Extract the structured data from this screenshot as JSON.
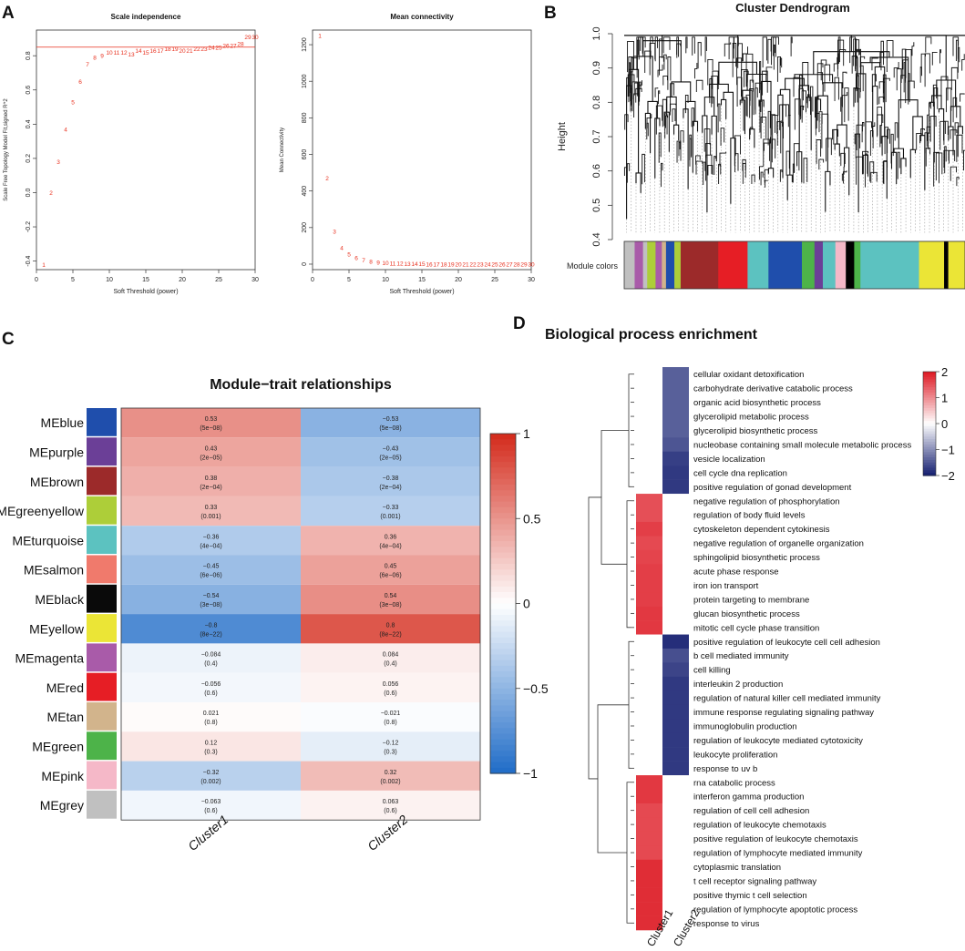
{
  "panel_letters": [
    "A",
    "B",
    "C",
    "D"
  ],
  "chart_data": [
    {
      "id": "A1",
      "type": "scatter",
      "title": "Scale independence",
      "xlabel": "Soft Threshold (power)",
      "ylabel": "Scale Free Topology Model Fit,signed R^2",
      "xlim": [
        0,
        30
      ],
      "ylim": [
        -0.45,
        0.95
      ],
      "xticks": [
        "0",
        "5",
        "10",
        "15",
        "20",
        "25",
        "30"
      ],
      "yticks": [
        "-0.4",
        "-0.2",
        "0.0",
        "0.2",
        "0.4",
        "0.6",
        "0.8"
      ],
      "hline": 0.85,
      "line_color": "#e8311f",
      "x": [
        1,
        2,
        3,
        4,
        5,
        6,
        7,
        8,
        9,
        10,
        11,
        12,
        13,
        14,
        15,
        16,
        17,
        18,
        19,
        20,
        21,
        22,
        23,
        24,
        25,
        26,
        27,
        28,
        29,
        30
      ],
      "values": [
        -0.42,
        0.0,
        0.18,
        0.37,
        0.53,
        0.65,
        0.75,
        0.79,
        0.8,
        0.82,
        0.82,
        0.82,
        0.81,
        0.83,
        0.82,
        0.83,
        0.83,
        0.84,
        0.84,
        0.83,
        0.83,
        0.84,
        0.84,
        0.85,
        0.85,
        0.86,
        0.86,
        0.87,
        0.91,
        0.91
      ]
    },
    {
      "id": "A2",
      "type": "scatter",
      "title": "Mean connectivity",
      "xlabel": "Soft Threshold (power)",
      "ylabel": "Mean Connectivity",
      "xlim": [
        0,
        30
      ],
      "ylim": [
        -30,
        1280
      ],
      "xticks": [
        "0",
        "5",
        "10",
        "15",
        "20",
        "25",
        "30"
      ],
      "yticks": [
        "0",
        "200",
        "400",
        "600",
        "800",
        "1000",
        "1200"
      ],
      "x": [
        1,
        2,
        3,
        4,
        5,
        6,
        7,
        8,
        9,
        10,
        11,
        12,
        13,
        14,
        15,
        16,
        17,
        18,
        19,
        20,
        21,
        22,
        23,
        24,
        25,
        26,
        27,
        28,
        29,
        30
      ],
      "values": [
        1250,
        470,
        180,
        90,
        55,
        35,
        22,
        15,
        10,
        7,
        5,
        4,
        3,
        2,
        2,
        1,
        1,
        1,
        1,
        0,
        0,
        0,
        0,
        0,
        0,
        0,
        0,
        0,
        0,
        0
      ]
    },
    {
      "id": "B",
      "type": "dendrogram",
      "title": "Cluster Dendrogram",
      "ylabel": "Height",
      "yticks": [
        "0.4",
        "0.5",
        "0.6",
        "0.7",
        "0.8",
        "0.9",
        "1.0"
      ],
      "ylim": [
        0.4,
        1.0
      ],
      "colorbar_label": "Module colors",
      "module_color_blocks": [
        {
          "color": "#c0c0c0",
          "w": 2.5
        },
        {
          "color": "#a95ba9",
          "w": 2
        },
        {
          "color": "#c0c0c0",
          "w": 1
        },
        {
          "color": "#adce39",
          "w": 2
        },
        {
          "color": "#a95ba9",
          "w": 1.5
        },
        {
          "color": "#d2b48c",
          "w": 1
        },
        {
          "color": "#1f4eac",
          "w": 2
        },
        {
          "color": "#adce39",
          "w": 1.5
        },
        {
          "color": "#9c2a2a",
          "w": 9
        },
        {
          "color": "#e61e25",
          "w": 7
        },
        {
          "color": "#5cc2c0",
          "w": 5
        },
        {
          "color": "#1f4eac",
          "w": 8
        },
        {
          "color": "#4db349",
          "w": 3
        },
        {
          "color": "#6b3f97",
          "w": 2
        },
        {
          "color": "#5cc2c0",
          "w": 3
        },
        {
          "color": "#f5b8c8",
          "w": 2.5
        },
        {
          "color": "#000000",
          "w": 2
        },
        {
          "color": "#4db349",
          "w": 1.5
        },
        {
          "color": "#5cc2c0",
          "w": 14
        },
        {
          "color": "#ebe536",
          "w": 6
        },
        {
          "color": "#000000",
          "w": 1
        },
        {
          "color": "#ebe536",
          "w": 4
        }
      ]
    },
    {
      "id": "C",
      "type": "heatmap",
      "title": "Module−trait relationships",
      "rows": [
        "MEblue",
        "MEpurple",
        "MEbrown",
        "MEgreenyellow",
        "MEturquoise",
        "MEsalmon",
        "MEblack",
        "MEyellow",
        "MEmagenta",
        "MEred",
        "MEtan",
        "MEgreen",
        "MEpink",
        "MEgrey"
      ],
      "row_colors": [
        "#1f4eac",
        "#6b3f97",
        "#9c2a2a",
        "#adce39",
        "#5cc2c0",
        "#f07a6c",
        "#0a0a0a",
        "#ebe536",
        "#a95ba9",
        "#e61e25",
        "#d2b48c",
        "#4db349",
        "#f5b8c8",
        "#c0c0c0"
      ],
      "columns": [
        "Cluster1",
        "Cluster2"
      ],
      "values": [
        [
          0.53,
          -0.53
        ],
        [
          0.43,
          -0.43
        ],
        [
          0.38,
          -0.38
        ],
        [
          0.33,
          -0.33
        ],
        [
          -0.36,
          0.36
        ],
        [
          -0.45,
          0.45
        ],
        [
          -0.54,
          0.54
        ],
        [
          -0.8,
          0.8
        ],
        [
          -0.084,
          0.084
        ],
        [
          -0.056,
          0.056
        ],
        [
          0.021,
          -0.021
        ],
        [
          0.12,
          -0.12
        ],
        [
          -0.32,
          0.32
        ],
        [
          -0.063,
          0.063
        ]
      ],
      "labels": [
        [
          "0.53",
          "−0.53"
        ],
        [
          "0.43",
          "−0.43"
        ],
        [
          "0.38",
          "−0.38"
        ],
        [
          "0.33",
          "−0.33"
        ],
        [
          "−0.36",
          "0.36"
        ],
        [
          "−0.45",
          "0.45"
        ],
        [
          "−0.54",
          "0.54"
        ],
        [
          "−0.8",
          "0.8"
        ],
        [
          "−0.084",
          "0.084"
        ],
        [
          "−0.056",
          "0.056"
        ],
        [
          "0.021",
          "−0.021"
        ],
        [
          "0.12",
          "−0.12"
        ],
        [
          "−0.32",
          "0.32"
        ],
        [
          "−0.063",
          "0.063"
        ]
      ],
      "pvalues": [
        [
          "(5e−08)",
          "(5e−08)"
        ],
        [
          "(2e−05)",
          "(2e−05)"
        ],
        [
          "(2e−04)",
          "(2e−04)"
        ],
        [
          "(0.001)",
          "(0.001)"
        ],
        [
          "(4e−04)",
          "(4e−04)"
        ],
        [
          "(6e−06)",
          "(6e−06)"
        ],
        [
          "(3e−08)",
          "(3e−08)"
        ],
        [
          "(8e−22)",
          "(8e−22)"
        ],
        [
          "(0.4)",
          "(0.4)"
        ],
        [
          "(0.6)",
          "(0.6)"
        ],
        [
          "(0.8)",
          "(0.8)"
        ],
        [
          "(0.3)",
          "(0.3)"
        ],
        [
          "(0.002)",
          "(0.002)"
        ],
        [
          "(0.6)",
          "(0.6)"
        ]
      ],
      "colorbar_ticks": [
        "1",
        "0.5",
        "0",
        "−0.5",
        "−1"
      ],
      "range": [
        -1,
        1
      ]
    },
    {
      "id": "D",
      "type": "heatmap",
      "title": "Biological process enrichment",
      "columns": [
        "Cluster1",
        "Cluster2"
      ],
      "terms": [
        "cellular oxidant detoxification",
        "carbohydrate derivative catabolic process",
        "organic acid biosynthetic process",
        "glycerolipid metabolic process",
        "glycerolipid biosynthetic process",
        "nucleobase containing small molecule metabolic process",
        "vesicle localization",
        "cell cycle dna replication",
        "positive regulation of gonad development",
        "negative regulation of phosphorylation",
        "regulation of body fluid levels",
        "cytoskeleton dependent cytokinesis",
        "negative regulation of organelle organization",
        "sphingolipid biosynthetic process",
        "acute phase response",
        "iron ion transport",
        "protein targeting to membrane",
        "glucan biosynthetic process",
        "mitotic cell cycle phase transition",
        "positive regulation of leukocyte cell cell adhesion",
        "b cell mediated immunity",
        "cell killing",
        "interleukin 2 production",
        "regulation of natural killer cell mediated immunity",
        "immune response regulating signaling pathway",
        "immunoglobulin production",
        "regulation of leukocyte mediated cytotoxicity",
        "leukocyte proliferation",
        "response to uv b",
        "rna catabolic process",
        "interferon gamma production",
        "regulation of cell cell adhesion",
        "regulation of leukocyte chemotaxis",
        "positive regulation of leukocyte chemotaxis",
        "regulation of lymphocyte mediated immunity",
        "cytoplasmic translation",
        "t cell receptor signaling pathway",
        "positive thymic t cell selection",
        "regulation of lymphocyte apoptotic process",
        "response to virus"
      ],
      "values": [
        [
          0,
          -1.45
        ],
        [
          0,
          -1.45
        ],
        [
          0,
          -1.45
        ],
        [
          0,
          -1.45
        ],
        [
          0,
          -1.45
        ],
        [
          0,
          -1.55
        ],
        [
          0,
          -1.75
        ],
        [
          0,
          -1.8
        ],
        [
          0,
          -1.8
        ],
        [
          1.55,
          0
        ],
        [
          1.55,
          0
        ],
        [
          1.7,
          0
        ],
        [
          1.6,
          0
        ],
        [
          1.65,
          0
        ],
        [
          1.7,
          0
        ],
        [
          1.7,
          0
        ],
        [
          1.7,
          0
        ],
        [
          1.75,
          0
        ],
        [
          1.75,
          0
        ],
        [
          0,
          -1.9
        ],
        [
          0,
          -1.6
        ],
        [
          0,
          -1.7
        ],
        [
          0,
          -1.8
        ],
        [
          0,
          -1.8
        ],
        [
          0,
          -1.8
        ],
        [
          0,
          -1.8
        ],
        [
          0,
          -1.8
        ],
        [
          0,
          -1.8
        ],
        [
          0,
          -1.8
        ],
        [
          1.75,
          0
        ],
        [
          1.75,
          0
        ],
        [
          1.6,
          0
        ],
        [
          1.6,
          0
        ],
        [
          1.6,
          0
        ],
        [
          1.6,
          0
        ],
        [
          1.85,
          0
        ],
        [
          1.85,
          0
        ],
        [
          1.85,
          0
        ],
        [
          1.85,
          0
        ],
        [
          1.85,
          0
        ]
      ],
      "colorbar_ticks": [
        "2",
        "1",
        "0",
        "−1",
        "−2"
      ],
      "range": [
        -2,
        2
      ]
    }
  ]
}
